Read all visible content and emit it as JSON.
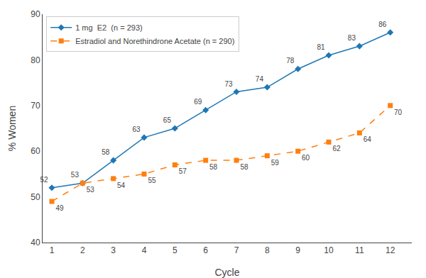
{
  "chart_data": {
    "type": "line",
    "x": [
      1,
      2,
      3,
      4,
      5,
      6,
      7,
      8,
      9,
      10,
      11,
      12
    ],
    "series": [
      {
        "name": "1 mg  E2  (n = 293)",
        "values": [
          52,
          53,
          58,
          63,
          65,
          69,
          73,
          74,
          78,
          81,
          83,
          86
        ],
        "marker": "diamond",
        "line_style": "solid"
      },
      {
        "name": "Estradiol and Norethindrone Acetate (n = 290)",
        "values": [
          49,
          53,
          54,
          55,
          57,
          58,
          58,
          59,
          60,
          62,
          64,
          70
        ],
        "marker": "square",
        "line_style": "dashed"
      }
    ],
    "x_label": "Cycle",
    "y_label": "% Women",
    "xlim": [
      0.7,
      12.7
    ],
    "xticks": [
      1,
      2,
      3,
      4,
      5,
      6,
      7,
      8,
      9,
      10,
      11,
      12
    ],
    "ylim": [
      40,
      90
    ],
    "yticks": [
      40,
      50,
      60,
      70,
      80,
      90
    ],
    "grid": false,
    "legend": "upper left",
    "data_labels": true
  }
}
